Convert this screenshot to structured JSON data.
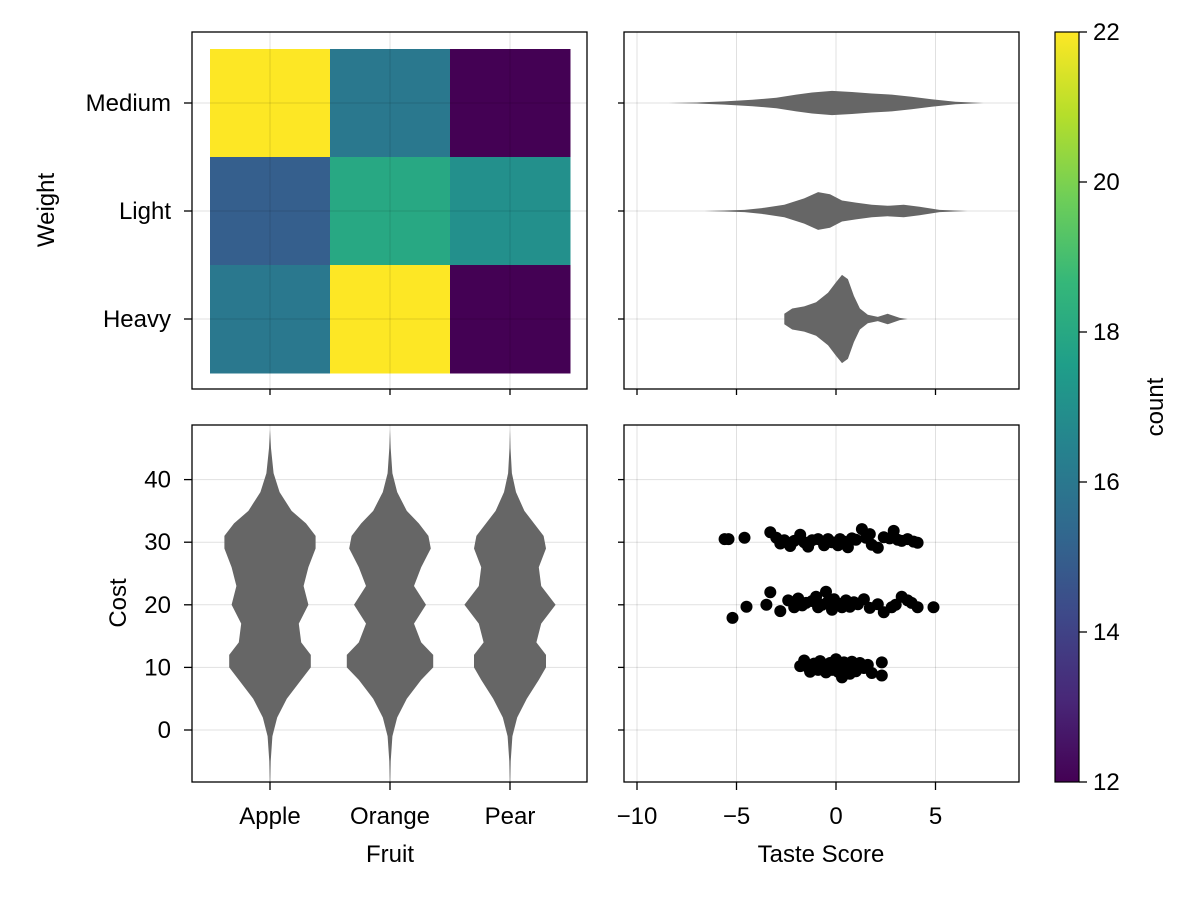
{
  "chart_data": [
    {
      "id": "heatmap",
      "type": "heatmap",
      "categories_x": [
        "Apple",
        "Orange",
        "Pear"
      ],
      "categories_y": [
        "Heavy",
        "Light",
        "Medium"
      ],
      "values": [
        {
          "x": "Apple",
          "y": "Medium",
          "value": 22.0
        },
        {
          "x": "Orange",
          "y": "Medium",
          "value": 16.0
        },
        {
          "x": "Pear",
          "y": "Medium",
          "value": 12.0
        },
        {
          "x": "Apple",
          "y": "Light",
          "value": 15.0
        },
        {
          "x": "Orange",
          "y": "Light",
          "value": 18.0
        },
        {
          "x": "Pear",
          "y": "Light",
          "value": 17.0
        },
        {
          "x": "Apple",
          "y": "Heavy",
          "value": 16.0
        },
        {
          "x": "Orange",
          "y": "Heavy",
          "value": 22.0
        },
        {
          "x": "Pear",
          "y": "Heavy",
          "value": 12.0
        }
      ],
      "ylabel": "Weight",
      "grid": true
    },
    {
      "id": "taste-violins",
      "type": "violin",
      "orientation": "horizontal",
      "categories": [
        "Heavy",
        "Light",
        "Medium"
      ],
      "xlim": [
        -10.5,
        9
      ],
      "grid": true,
      "violins": [
        {
          "category": "Heavy",
          "color": "#666666",
          "profile": [
            [
              -2.6,
              0.05
            ],
            [
              -2.2,
              0.1
            ],
            [
              -1.6,
              0.12
            ],
            [
              -1.0,
              0.16
            ],
            [
              -0.4,
              0.25
            ],
            [
              0.0,
              0.35
            ],
            [
              0.3,
              0.42
            ],
            [
              0.6,
              0.38
            ],
            [
              0.9,
              0.22
            ],
            [
              1.2,
              0.1
            ],
            [
              1.6,
              0.04
            ],
            [
              2.1,
              0.02
            ],
            [
              2.6,
              0.05
            ],
            [
              3.2,
              0.01
            ],
            [
              3.6,
              0.0
            ]
          ]
        },
        {
          "category": "Light",
          "color": "#666666",
          "profile": [
            [
              -6.6,
              0.0
            ],
            [
              -5.6,
              0.005
            ],
            [
              -4.6,
              0.01
            ],
            [
              -3.6,
              0.03
            ],
            [
              -2.6,
              0.06
            ],
            [
              -1.6,
              0.12
            ],
            [
              -0.9,
              0.18
            ],
            [
              -0.3,
              0.16
            ],
            [
              0.3,
              0.1
            ],
            [
              1.0,
              0.08
            ],
            [
              1.8,
              0.06
            ],
            [
              2.6,
              0.05
            ],
            [
              3.4,
              0.06
            ],
            [
              4.2,
              0.04
            ],
            [
              5.2,
              0.01
            ],
            [
              6.6,
              0.0
            ]
          ]
        },
        {
          "category": "Medium",
          "color": "#666666",
          "profile": [
            [
              -8.4,
              0.0
            ],
            [
              -7.0,
              0.005
            ],
            [
              -5.6,
              0.015
            ],
            [
              -4.2,
              0.03
            ],
            [
              -3.0,
              0.05
            ],
            [
              -2.0,
              0.08
            ],
            [
              -1.2,
              0.1
            ],
            [
              -0.2,
              0.115
            ],
            [
              0.8,
              0.105
            ],
            [
              1.8,
              0.09
            ],
            [
              2.8,
              0.08
            ],
            [
              3.8,
              0.06
            ],
            [
              4.8,
              0.035
            ],
            [
              6.0,
              0.012
            ],
            [
              7.4,
              0.0
            ]
          ]
        }
      ]
    },
    {
      "id": "cost-violins",
      "type": "violin",
      "orientation": "vertical",
      "categories": [
        "Apple",
        "Orange",
        "Pear"
      ],
      "xlabel": "Fruit",
      "ylabel": "Cost",
      "ylim": [
        -8,
        48
      ],
      "yticks": [
        0,
        10,
        20,
        30,
        40
      ],
      "grid": true,
      "violins": [
        {
          "category": "Apple",
          "color": "#666666",
          "profile": [
            [
              -10,
              0.0
            ],
            [
              -5,
              0.003
            ],
            [
              -1,
              0.01
            ],
            [
              2,
              0.03
            ],
            [
              5,
              0.07
            ],
            [
              8,
              0.13
            ],
            [
              10,
              0.17
            ],
            [
              12,
              0.17
            ],
            [
              14,
              0.13
            ],
            [
              17,
              0.12
            ],
            [
              20,
              0.16
            ],
            [
              23,
              0.14
            ],
            [
              26,
              0.16
            ],
            [
              29,
              0.19
            ],
            [
              31,
              0.19
            ],
            [
              33,
              0.15
            ],
            [
              35,
              0.09
            ],
            [
              38,
              0.04
            ],
            [
              41,
              0.015
            ],
            [
              45,
              0.004
            ],
            [
              48,
              0.0
            ]
          ]
        },
        {
          "category": "Orange",
          "color": "#666666",
          "profile": [
            [
              -10,
              0.0
            ],
            [
              -5,
              0.003
            ],
            [
              -1,
              0.01
            ],
            [
              2,
              0.03
            ],
            [
              5,
              0.07
            ],
            [
              8,
              0.13
            ],
            [
              10,
              0.18
            ],
            [
              12,
              0.18
            ],
            [
              14,
              0.13
            ],
            [
              17,
              0.1
            ],
            [
              20,
              0.15
            ],
            [
              23,
              0.1
            ],
            [
              26,
              0.13
            ],
            [
              29,
              0.17
            ],
            [
              31,
              0.16
            ],
            [
              33,
              0.12
            ],
            [
              35,
              0.07
            ],
            [
              38,
              0.03
            ],
            [
              41,
              0.01
            ],
            [
              45,
              0.003
            ],
            [
              48,
              0.0
            ]
          ]
        },
        {
          "category": "Pear",
          "color": "#666666",
          "profile": [
            [
              -10,
              0.0
            ],
            [
              -5,
              0.003
            ],
            [
              -1,
              0.01
            ],
            [
              2,
              0.03
            ],
            [
              5,
              0.07
            ],
            [
              8,
              0.12
            ],
            [
              10,
              0.15
            ],
            [
              12,
              0.15
            ],
            [
              14,
              0.11
            ],
            [
              17,
              0.13
            ],
            [
              20,
              0.19
            ],
            [
              23,
              0.13
            ],
            [
              26,
              0.12
            ],
            [
              29,
              0.15
            ],
            [
              31,
              0.14
            ],
            [
              33,
              0.1
            ],
            [
              35,
              0.06
            ],
            [
              38,
              0.025
            ],
            [
              41,
              0.008
            ],
            [
              45,
              0.002
            ],
            [
              48,
              0.0
            ]
          ]
        }
      ]
    },
    {
      "id": "scatter",
      "type": "scatter",
      "xlabel": "Taste Score",
      "xlim": [
        -10.5,
        9
      ],
      "xticks": [
        -10,
        -5,
        0,
        5
      ],
      "ylim": [
        -8,
        48
      ],
      "grid": true,
      "color": "#000000",
      "points": [
        [
          -5.6,
          30.5
        ],
        [
          -5.4,
          30.5
        ],
        [
          -4.6,
          30.7
        ],
        [
          -3.3,
          31.6
        ],
        [
          -3.0,
          30.7
        ],
        [
          -2.8,
          29.8
        ],
        [
          -2.6,
          30.3
        ],
        [
          -2.3,
          29.4
        ],
        [
          -2.1,
          30.2
        ],
        [
          -1.8,
          31.2
        ],
        [
          -1.6,
          30.0
        ],
        [
          -1.4,
          29.3
        ],
        [
          -1.2,
          30.3
        ],
        [
          -0.9,
          30.5
        ],
        [
          -0.6,
          29.5
        ],
        [
          -0.4,
          30.5
        ],
        [
          -0.2,
          30.0
        ],
        [
          0.1,
          29.5
        ],
        [
          0.2,
          30.5
        ],
        [
          0.4,
          30.1
        ],
        [
          0.6,
          29.2
        ],
        [
          0.8,
          30.6
        ],
        [
          1.0,
          30.4
        ],
        [
          1.3,
          32.1
        ],
        [
          1.5,
          30.7
        ],
        [
          1.7,
          31.3
        ],
        [
          1.8,
          29.6
        ],
        [
          2.1,
          29.1
        ],
        [
          2.4,
          30.8
        ],
        [
          2.7,
          30.6
        ],
        [
          2.9,
          31.8
        ],
        [
          3.1,
          30.4
        ],
        [
          3.3,
          30.2
        ],
        [
          3.6,
          30.5
        ],
        [
          3.9,
          30.1
        ],
        [
          4.1,
          29.9
        ],
        [
          -5.2,
          17.9
        ],
        [
          -4.5,
          19.7
        ],
        [
          -3.3,
          22.0
        ],
        [
          -3.5,
          20.0
        ],
        [
          -2.8,
          19.0
        ],
        [
          -2.4,
          20.7
        ],
        [
          -2.1,
          19.6
        ],
        [
          -1.9,
          21.0
        ],
        [
          -1.7,
          19.9
        ],
        [
          -1.5,
          20.3
        ],
        [
          -1.2,
          20.6
        ],
        [
          -1.0,
          21.3
        ],
        [
          -0.9,
          19.6
        ],
        [
          -0.7,
          20.0
        ],
        [
          -0.5,
          22.1
        ],
        [
          -0.4,
          20.5
        ],
        [
          -0.2,
          19.2
        ],
        [
          -0.1,
          20.9
        ],
        [
          0.1,
          20.2
        ],
        [
          0.3,
          19.6
        ],
        [
          0.5,
          20.7
        ],
        [
          0.7,
          19.7
        ],
        [
          0.9,
          20.4
        ],
        [
          1.1,
          20.1
        ],
        [
          1.4,
          20.9
        ],
        [
          1.7,
          19.5
        ],
        [
          2.1,
          20.1
        ],
        [
          2.4,
          18.8
        ],
        [
          2.8,
          19.6
        ],
        [
          3.0,
          20.0
        ],
        [
          3.3,
          21.3
        ],
        [
          3.6,
          20.7
        ],
        [
          3.8,
          20.3
        ],
        [
          4.1,
          19.6
        ],
        [
          4.9,
          19.6
        ],
        [
          -1.8,
          10.2
        ],
        [
          -1.6,
          11.1
        ],
        [
          -1.4,
          10.0
        ],
        [
          -1.3,
          9.3
        ],
        [
          -1.1,
          10.6
        ],
        [
          -0.9,
          9.6
        ],
        [
          -0.8,
          11.0
        ],
        [
          -0.6,
          10.2
        ],
        [
          -0.5,
          9.2
        ],
        [
          -0.3,
          10.7
        ],
        [
          -0.2,
          9.6
        ],
        [
          -0.1,
          10.4
        ],
        [
          0.0,
          11.3
        ],
        [
          0.1,
          9.3
        ],
        [
          0.2,
          10.1
        ],
        [
          0.3,
          8.4
        ],
        [
          0.4,
          10.8
        ],
        [
          0.5,
          9.7
        ],
        [
          0.6,
          10.5
        ],
        [
          0.7,
          9.0
        ],
        [
          0.8,
          10.9
        ],
        [
          0.9,
          10.1
        ],
        [
          1.0,
          9.4
        ],
        [
          1.2,
          10.7
        ],
        [
          1.4,
          9.9
        ],
        [
          1.6,
          10.4
        ],
        [
          1.8,
          9.1
        ],
        [
          2.3,
          10.8
        ],
        [
          2.3,
          8.7
        ]
      ]
    },
    {
      "id": "colorbar",
      "type": "colorbar",
      "colormap": "viridis",
      "label": "count",
      "range": [
        12,
        22
      ],
      "ticks": [
        12,
        14,
        16,
        18,
        20,
        22
      ],
      "colors": [
        "#440154",
        "#482878",
        "#3e4989",
        "#31688e",
        "#26828e",
        "#1f9e89",
        "#35b779",
        "#6ece58",
        "#b5de2b",
        "#fde725"
      ]
    }
  ]
}
